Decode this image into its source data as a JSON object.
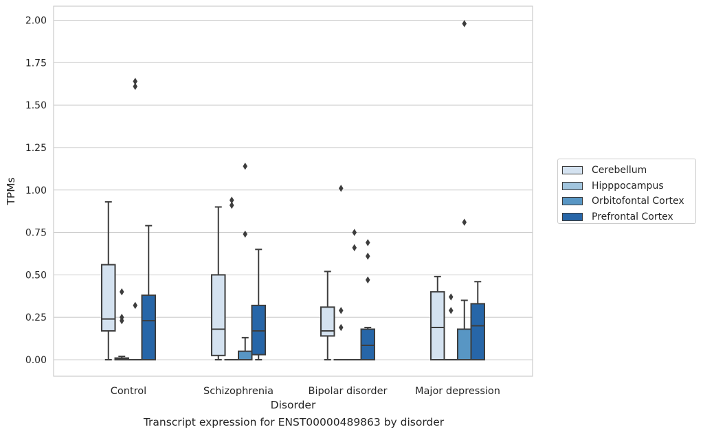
{
  "chart_data": {
    "type": "box",
    "caption": "Transcript expression for ENST00000489863 by disorder",
    "xlabel": "Disorder",
    "ylabel": "TPMs",
    "ylim": [
      -0.1,
      2.08
    ],
    "yticks": [
      "0.00",
      "0.25",
      "0.50",
      "0.75",
      "1.00",
      "1.25",
      "1.50",
      "1.75",
      "2.00"
    ],
    "categories": [
      "Control",
      "Schizophrenia",
      "Bipolar disorder",
      "Major depression"
    ],
    "grid": "horizontal",
    "legend_position": "right",
    "series": [
      {
        "name": "Cerebellum",
        "color": "#d4e2f0",
        "boxes": [
          {
            "whisker_low": 0,
            "q1": 0.17,
            "median": 0.24,
            "q3": 0.56,
            "whisker_high": 0.93,
            "outliers": []
          },
          {
            "whisker_low": 0,
            "q1": 0.025,
            "median": 0.18,
            "q3": 0.5,
            "whisker_high": 0.9,
            "outliers": []
          },
          {
            "whisker_low": 0,
            "q1": 0.14,
            "median": 0.17,
            "q3": 0.31,
            "whisker_high": 0.52,
            "outliers": []
          },
          {
            "whisker_low": 0,
            "q1": 0,
            "median": 0.19,
            "q3": 0.4,
            "whisker_high": 0.49,
            "outliers": []
          }
        ]
      },
      {
        "name": "Hipppocampus",
        "color": "#a1c5de",
        "boxes": [
          {
            "whisker_low": 0,
            "q1": 0,
            "median": 0.005,
            "q3": 0.01,
            "whisker_high": 0.02,
            "outliers": [
              0.4,
              0.25,
              0.23
            ]
          },
          {
            "whisker_low": 0,
            "q1": 0,
            "median": 0,
            "q3": 0,
            "whisker_high": 0,
            "outliers": [
              0.94,
              0.91
            ]
          },
          {
            "whisker_low": 0,
            "q1": 0,
            "median": 0,
            "q3": 0,
            "whisker_high": 0,
            "outliers": [
              1.01,
              0.29,
              0.19
            ]
          },
          {
            "whisker_low": 0,
            "q1": 0,
            "median": 0,
            "q3": 0,
            "whisker_high": 0,
            "outliers": [
              0.37,
              0.29
            ]
          }
        ]
      },
      {
        "name": "Orbitofontal Cortex",
        "color": "#5896c4",
        "boxes": [
          {
            "whisker_low": 0,
            "q1": 0,
            "median": 0,
            "q3": 0,
            "whisker_high": 0,
            "outliers": [
              1.64,
              1.61,
              0.32
            ]
          },
          {
            "whisker_low": 0,
            "q1": 0,
            "median": 0,
            "q3": 0.05,
            "whisker_high": 0.13,
            "outliers": [
              1.14,
              0.74
            ]
          },
          {
            "whisker_low": 0,
            "q1": 0,
            "median": 0,
            "q3": 0,
            "whisker_high": 0,
            "outliers": [
              0.75,
              0.66
            ]
          },
          {
            "whisker_low": 0,
            "q1": 0,
            "median": 0,
            "q3": 0.18,
            "whisker_high": 0.35,
            "outliers": [
              1.98,
              0.81
            ]
          }
        ]
      },
      {
        "name": "Prefrontal Cortex",
        "color": "#2766a8",
        "boxes": [
          {
            "whisker_low": 0,
            "q1": 0,
            "median": 0.23,
            "q3": 0.38,
            "whisker_high": 0.79,
            "outliers": []
          },
          {
            "whisker_low": 0,
            "q1": 0.03,
            "median": 0.17,
            "q3": 0.32,
            "whisker_high": 0.65,
            "outliers": []
          },
          {
            "whisker_low": 0,
            "q1": 0,
            "median": 0.085,
            "q3": 0.18,
            "whisker_high": 0.19,
            "outliers": [
              0.69,
              0.61,
              0.47
            ]
          },
          {
            "whisker_low": 0,
            "q1": 0,
            "median": 0.2,
            "q3": 0.33,
            "whisker_high": 0.46,
            "outliers": []
          }
        ]
      }
    ]
  }
}
